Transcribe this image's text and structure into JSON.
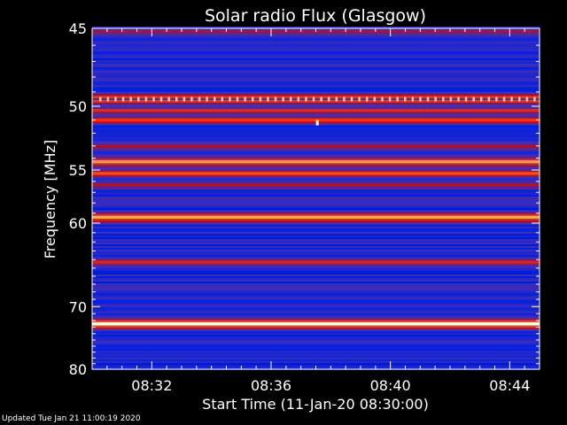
{
  "chart_data": {
    "type": "heatmap",
    "title": "Solar radio Flux (Glasgow)",
    "xlabel": "Start Time (11-Jan-20 08:30:00)",
    "ylabel": "Frequency [MHz]",
    "x_range_minutes": [
      0,
      15
    ],
    "x_ticks": [
      {
        "minute": 2,
        "label": "08:32"
      },
      {
        "minute": 6,
        "label": "08:36"
      },
      {
        "minute": 10,
        "label": "08:40"
      },
      {
        "minute": 14,
        "label": "08:44"
      }
    ],
    "y_range_mhz": [
      45,
      80
    ],
    "y_scale": "reciprocal",
    "y_ticks": [
      45,
      50,
      55,
      60,
      70,
      80
    ],
    "grid": false,
    "colormap": [
      "#000070",
      "#0020e0",
      "#5030b0",
      "#b01020",
      "#ff3010",
      "#ffa040",
      "#ffffe0"
    ],
    "bands_mhz": [
      {
        "freq": 45.2,
        "intensity": 0.45
      },
      {
        "freq": 49.5,
        "intensity": 0.9,
        "pattern": "dotted"
      },
      {
        "freq": 50.3,
        "intensity": 0.62
      },
      {
        "freq": 51.0,
        "intensity": 0.66
      },
      {
        "freq": 53.0,
        "intensity": 0.5
      },
      {
        "freq": 54.3,
        "intensity": 0.82
      },
      {
        "freq": 55.3,
        "intensity": 0.7
      },
      {
        "freq": 56.3,
        "intensity": 0.52
      },
      {
        "freq": 59.4,
        "intensity": 0.85
      },
      {
        "freq": 64.3,
        "intensity": 0.6
      },
      {
        "freq": 72.5,
        "intensity": 1.0
      }
    ],
    "point_events": [
      {
        "minute": 7.55,
        "freq": 51.2,
        "intensity": 1.0
      }
    ]
  },
  "footer": "Updated Tue Jan 21 11:00:19 2020"
}
